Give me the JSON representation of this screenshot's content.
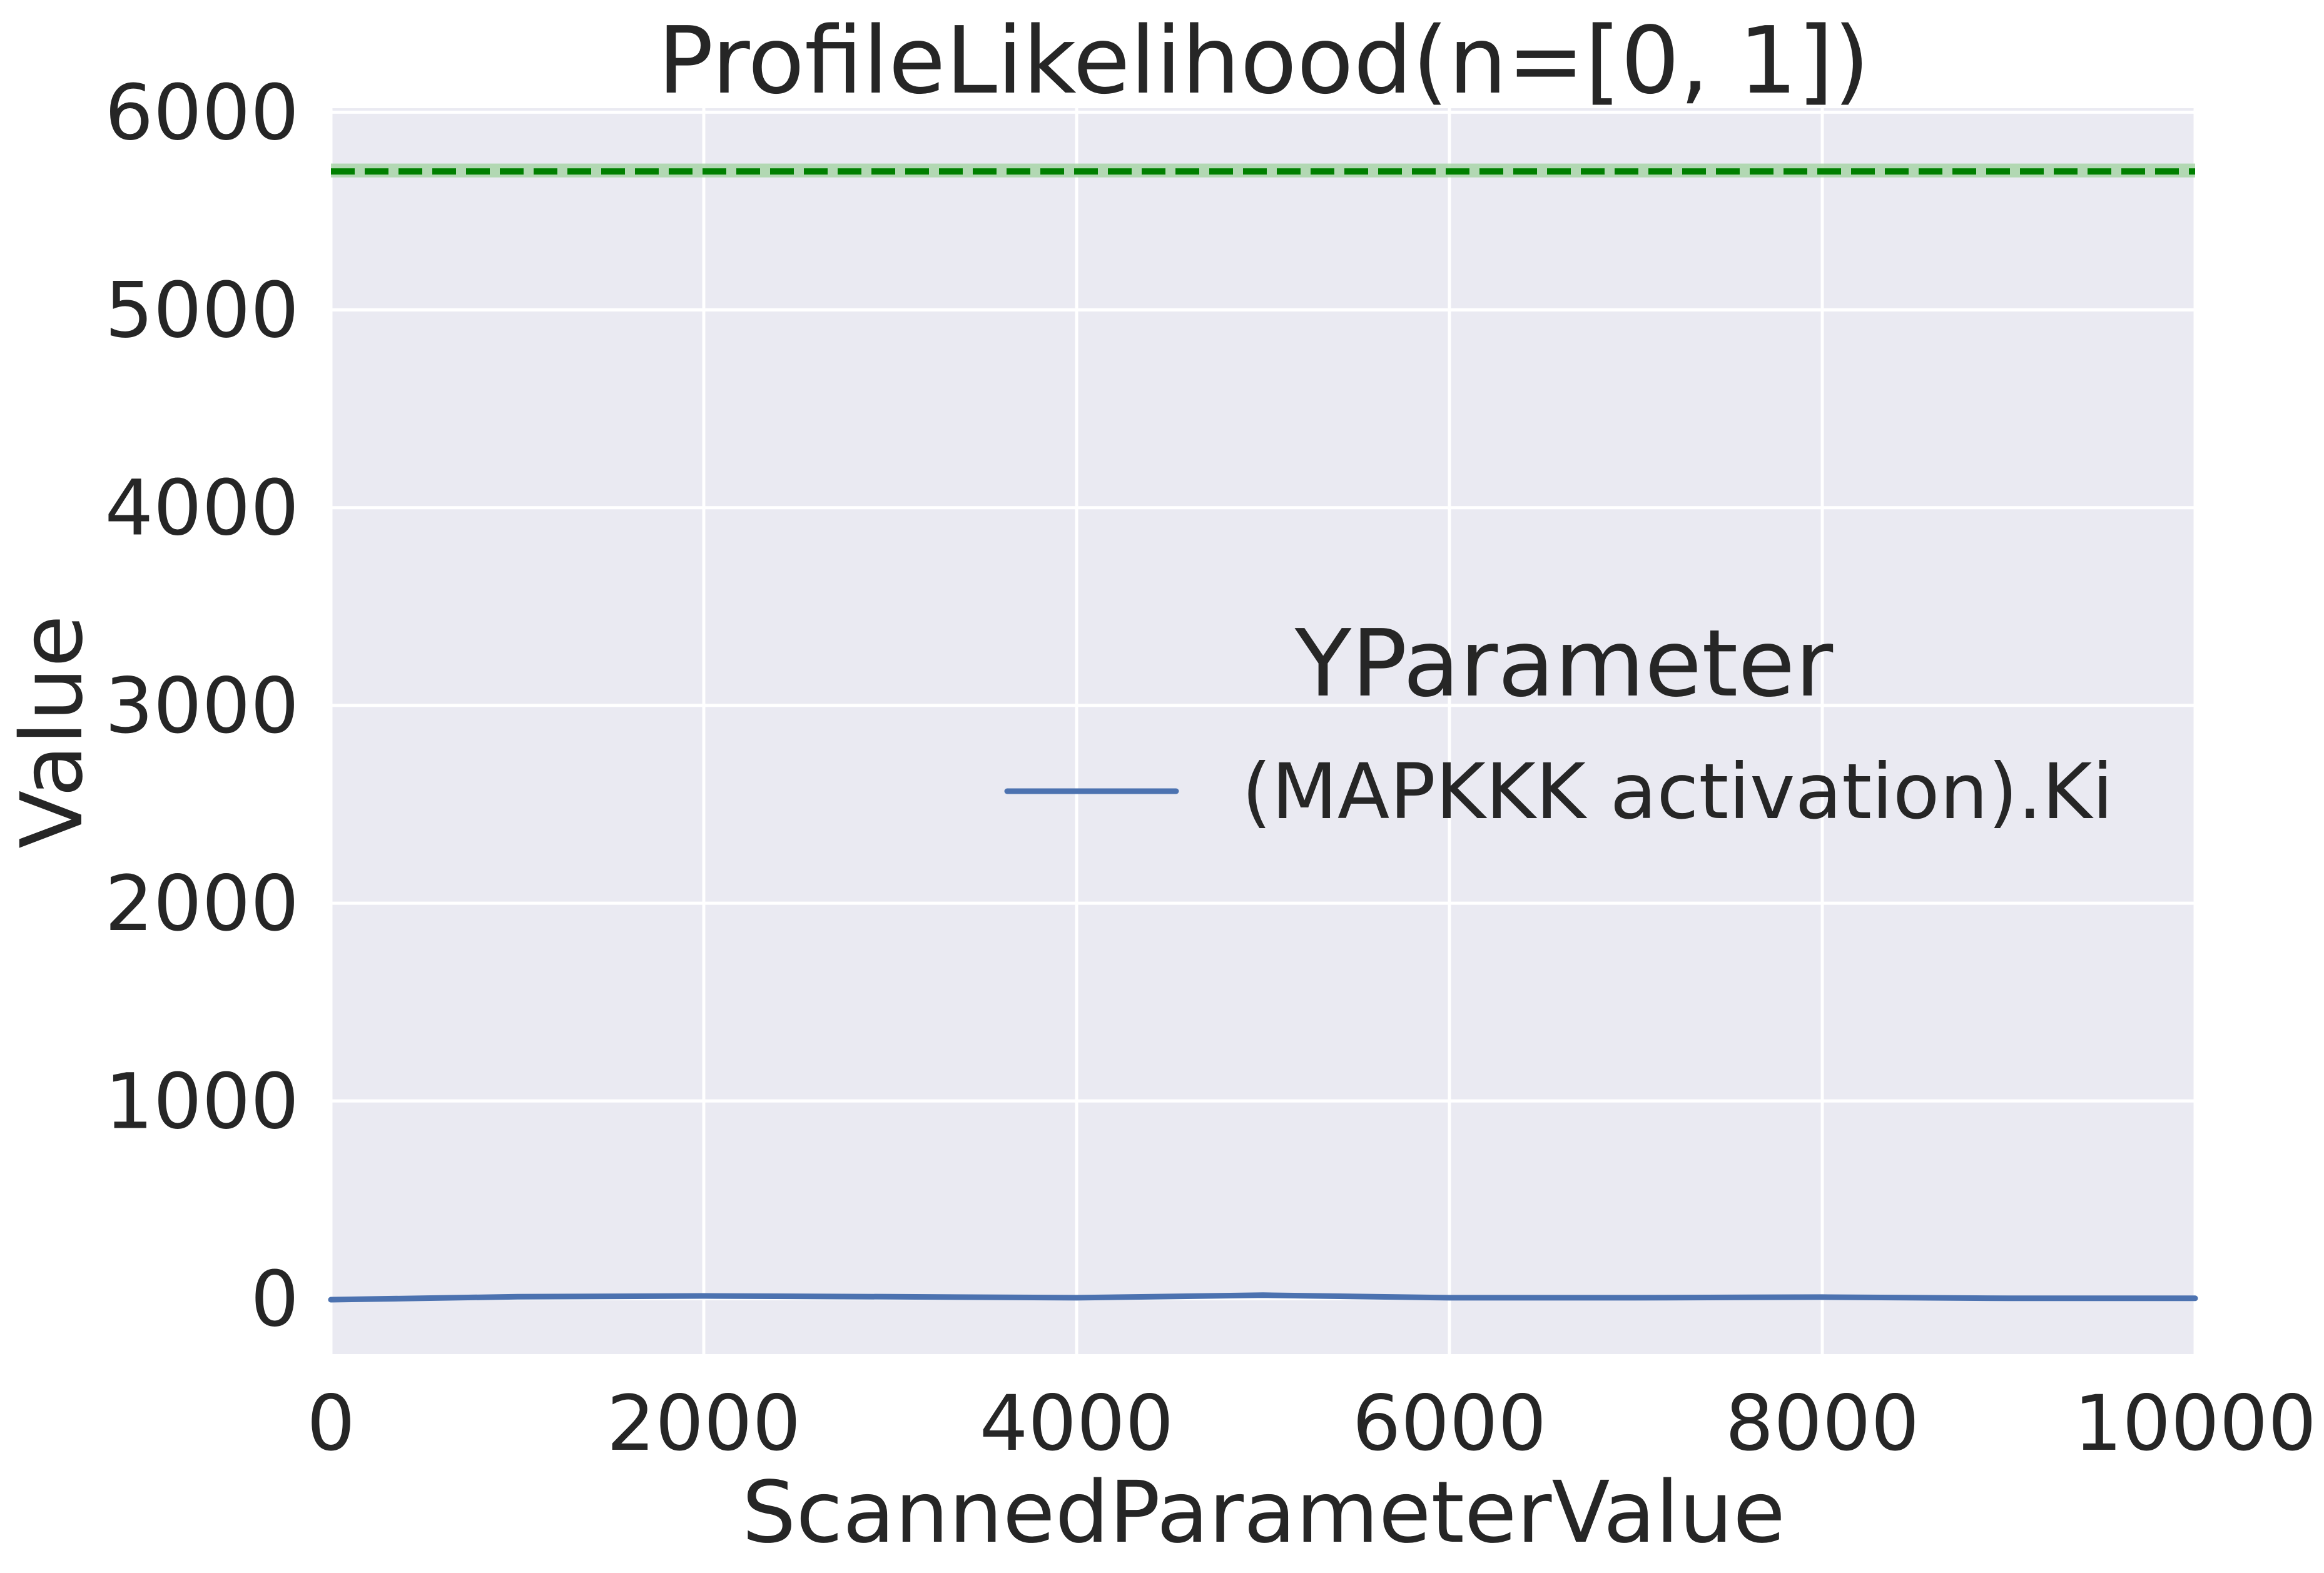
{
  "chart_data": {
    "type": "line",
    "title": "ProfileLikelihood(n=[0, 1])",
    "xlabel": "ScannedParameterValue",
    "ylabel": "Value",
    "xlim": [
      0,
      10000
    ],
    "ylim": [
      -280,
      6020
    ],
    "x_ticks": [
      "0",
      "2000",
      "4000",
      "6000",
      "8000",
      "10000"
    ],
    "y_ticks": [
      "0",
      "1000",
      "2000",
      "3000",
      "4000",
      "5000",
      "6000"
    ],
    "grid": true,
    "legend": {
      "title": "YParameter",
      "placement": "center-right"
    },
    "series": [
      {
        "name": "(MAPKKK activation).Ki",
        "color": "#4c72b0",
        "x": [
          0,
          1000,
          2000,
          3000,
          4000,
          5000,
          6000,
          7000,
          8000,
          9000,
          10000
        ],
        "y": [
          -5,
          10,
          14,
          10,
          5,
          18,
          5,
          5,
          8,
          2,
          2
        ]
      }
    ],
    "reference_line": {
      "y": 5700,
      "band": [
        5670,
        5740
      ],
      "style": "dashed",
      "color": "#008000",
      "band_color": "#a8d5a8"
    }
  }
}
